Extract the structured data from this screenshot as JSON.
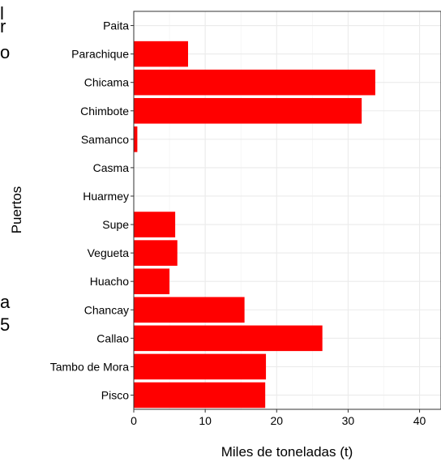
{
  "left_text_fragments": [
    "l",
    "r",
    "o",
    "a",
    "5"
  ],
  "chart_data": {
    "type": "bar",
    "orientation": "horizontal",
    "categories": [
      "Paita",
      "Parachique",
      "Chicama",
      "Chimbote",
      "Samanco",
      "Casma",
      "Huarmey",
      "Supe",
      "Vegueta",
      "Huacho",
      "Chancay",
      "Callao",
      "Tambo de Mora",
      "Pisco"
    ],
    "values": [
      0,
      7.6,
      33.8,
      31.9,
      0.5,
      0,
      0,
      5.8,
      6.1,
      5.0,
      15.5,
      26.4,
      18.5,
      18.4
    ],
    "xlabel": "Miles de toneladas (t)",
    "ylabel": "Puertos",
    "xticks": [
      0,
      10,
      20,
      30,
      40
    ],
    "xlim": [
      0,
      43
    ],
    "bar_color": "#ff0000",
    "grid": true
  }
}
